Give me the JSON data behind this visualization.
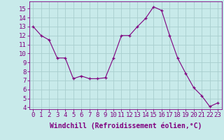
{
  "x": [
    0,
    1,
    2,
    3,
    4,
    5,
    6,
    7,
    8,
    9,
    10,
    11,
    12,
    13,
    14,
    15,
    16,
    17,
    18,
    19,
    20,
    21,
    22,
    23
  ],
  "y": [
    13,
    12,
    11.5,
    9.5,
    9.5,
    7.2,
    7.5,
    7.2,
    7.2,
    7.3,
    9.5,
    12,
    12,
    13,
    13.9,
    15.2,
    14.8,
    12,
    9.5,
    7.8,
    6.2,
    5.3,
    4.1,
    4.5
  ],
  "line_color": "#800080",
  "marker_color": "#800080",
  "bg_color": "#c8eaea",
  "grid_color": "#a8cece",
  "xlabel": "Windchill (Refroidissement éolien,°C)",
  "ylim_min": 3.8,
  "ylim_max": 15.8,
  "yticks": [
    4,
    5,
    6,
    7,
    8,
    9,
    10,
    11,
    12,
    13,
    14,
    15
  ],
  "xticks": [
    0,
    1,
    2,
    3,
    4,
    5,
    6,
    7,
    8,
    9,
    10,
    11,
    12,
    13,
    14,
    15,
    16,
    17,
    18,
    19,
    20,
    21,
    22,
    23
  ],
  "tick_color": "#800080",
  "font_size": 6.5,
  "xlabel_font_size": 7
}
